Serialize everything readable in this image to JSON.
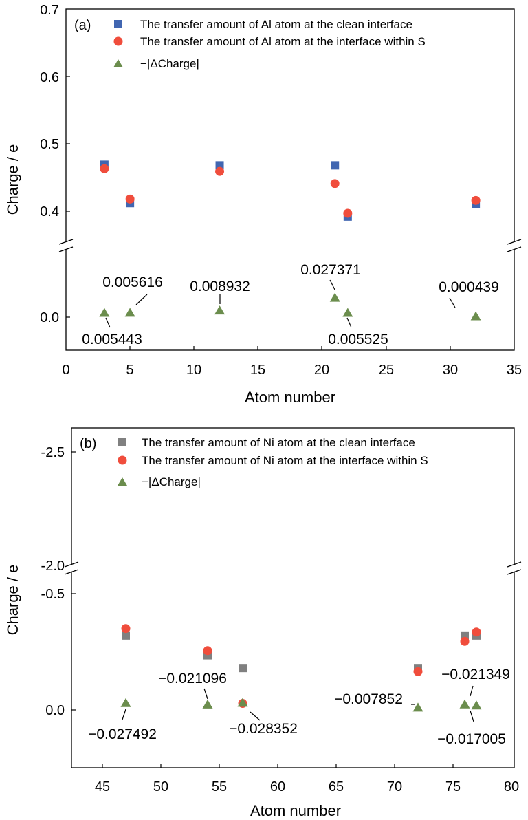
{
  "chart_data": [
    {
      "type": "scatter",
      "panel_label": "(a)",
      "xlabel": "Atom number",
      "ylabel": "Charge / e",
      "xlim": [
        0,
        35
      ],
      "x_ticks": [
        "0",
        "5",
        "10",
        "15",
        "20",
        "25",
        "30",
        "35"
      ],
      "y_ticks_upper": [
        "0.4",
        "0.5",
        "0.6",
        "0.7"
      ],
      "y_ticks_lower": [
        "0.0"
      ],
      "y_axis_broken": true,
      "legend_position": "top-left",
      "series": [
        {
          "name": "The transfer amount of Al atom at the clean interface",
          "marker": "square",
          "color": "#4166b1",
          "x": [
            3,
            5,
            12,
            21,
            22,
            32
          ],
          "y": [
            0.469,
            0.412,
            0.468,
            0.468,
            0.392,
            0.411
          ]
        },
        {
          "name": "The transfer amount of Al atom at the interface within S",
          "marker": "circle",
          "color": "#f04d3c",
          "x": [
            3,
            5,
            12,
            21,
            22,
            32
          ],
          "y": [
            0.463,
            0.418,
            0.459,
            0.441,
            0.397,
            0.416
          ]
        },
        {
          "name": "−|ΔCharge|",
          "marker": "triangle",
          "color": "#6b8d4d",
          "x": [
            3,
            5,
            12,
            21,
            22,
            32
          ],
          "y": [
            0.005443,
            0.005616,
            0.008932,
            0.027371,
            0.005525,
            0.000439
          ]
        }
      ],
      "annotations": [
        "0.005443",
        "0.005616",
        "0.008932",
        "0.027371",
        "0.005525",
        "0.000439"
      ]
    },
    {
      "type": "scatter",
      "panel_label": "(b)",
      "xlabel": "Atom number",
      "ylabel": "Charge / e",
      "xlim": [
        42,
        80
      ],
      "x_ticks": [
        "45",
        "50",
        "55",
        "60",
        "65",
        "70",
        "75",
        "80"
      ],
      "y_ticks_upper": [
        "-2.0",
        "-2.5"
      ],
      "y_ticks_lower": [
        "0.0",
        "-0.5"
      ],
      "y_axis_broken": true,
      "legend_position": "top-left",
      "series": [
        {
          "name": "The transfer amount of Ni atom at the clean interface",
          "marker": "square",
          "color": "#808080",
          "x": [
            47,
            54,
            57,
            72,
            76,
            77
          ],
          "y": [
            -0.32,
            -0.235,
            -0.18,
            -0.18,
            -0.32,
            -0.32
          ]
        },
        {
          "name": "The transfer amount of Ni atom at the interface within S",
          "marker": "circle",
          "color": "#f04d3c",
          "x": [
            47,
            54,
            57,
            72,
            76,
            77
          ],
          "y": [
            -0.35,
            -0.255,
            -0.028,
            -0.165,
            -0.295,
            -0.335
          ]
        },
        {
          "name": "−|ΔCharge|",
          "marker": "triangle",
          "color": "#6b8d4d",
          "x": [
            47,
            54,
            57,
            72,
            76,
            77
          ],
          "y": [
            -0.027492,
            -0.021096,
            -0.028352,
            -0.007852,
            -0.021349,
            -0.017005
          ]
        }
      ],
      "annotations": [
        "−0.027492",
        "−0.021096",
        "−0.028352",
        "−0.007852",
        "−0.021349",
        "−0.017005"
      ]
    }
  ]
}
